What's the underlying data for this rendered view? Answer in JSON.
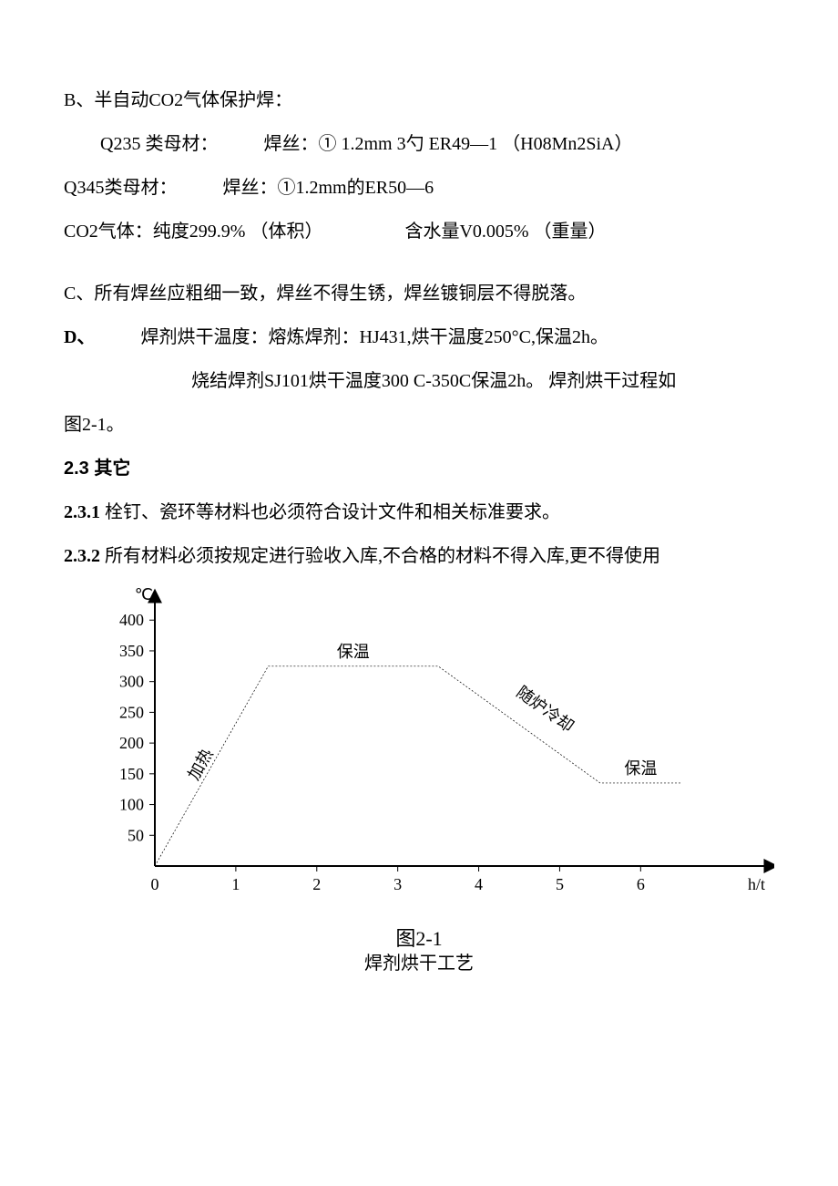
{
  "body": {
    "sectionB": {
      "title": "B、半自动CO2气体保护焊：",
      "line1_a": "Q235 类母材：",
      "line1_b": "焊丝：① 1.2mm 3勺 ER49—1 （H08Mn2SiA）",
      "line2_a": "Q345类母材：",
      "line2_b": "焊丝：①1.2mm的ER50—6",
      "line3_a": "CO2气体：纯度299.9% （体积）",
      "line3_b": "含水量V0.005% （重量）"
    },
    "sectionC": {
      "text": "C、所有焊丝应粗细一致，焊丝不得生锈，焊丝镀铜层不得脱落。"
    },
    "sectionD": {
      "prefix": "D、",
      "line1": "焊剂烘干温度：熔炼焊剂：HJ431,烘干温度250°C,保温2h。",
      "line2": "烧结焊剂SJ101烘干温度300 C-350C保温2h。 焊剂烘干过程如",
      "line3": "图2-1。"
    },
    "section23": {
      "heading": "2.3 其它",
      "item1_no": "2.3.1",
      "item1_text": " 栓钉、瓷环等材料也必须符合设计文件和相关标准要求。",
      "item2_no": "2.3.2",
      "item2_text": " 所有材料必须按规定进行验收入库,不合格的材料不得入库,更不得使用"
    }
  },
  "chart": {
    "type": "line",
    "caption": "图2-1",
    "subcaption": "焊剂烘干工艺",
    "x_label": "h/t",
    "y_label": "℃",
    "x_ticks": [
      0,
      1,
      2,
      3,
      4,
      5,
      6
    ],
    "y_ticks": [
      50,
      100,
      150,
      200,
      250,
      300,
      350,
      400
    ],
    "xlim": [
      0,
      7.2
    ],
    "ylim": [
      0,
      430
    ],
    "points": [
      {
        "x": 0,
        "y": 0
      },
      {
        "x": 1.4,
        "y": 325
      },
      {
        "x": 3.5,
        "y": 325
      },
      {
        "x": 5.5,
        "y": 135
      },
      {
        "x": 6.5,
        "y": 135
      }
    ],
    "line_color": "#000000",
    "line_width": 0.7,
    "dash": "2 2",
    "axis_color": "#000000",
    "axis_width": 2,
    "tick_line_width": 1,
    "background_color": "#ffffff",
    "label_fontsize": 18,
    "tick_fontsize": 18,
    "annotations": {
      "heating": "加热",
      "hold1": "保温",
      "cooling": "随炉冷却",
      "hold2": "保温"
    },
    "annotation_fontsize": 18
  }
}
